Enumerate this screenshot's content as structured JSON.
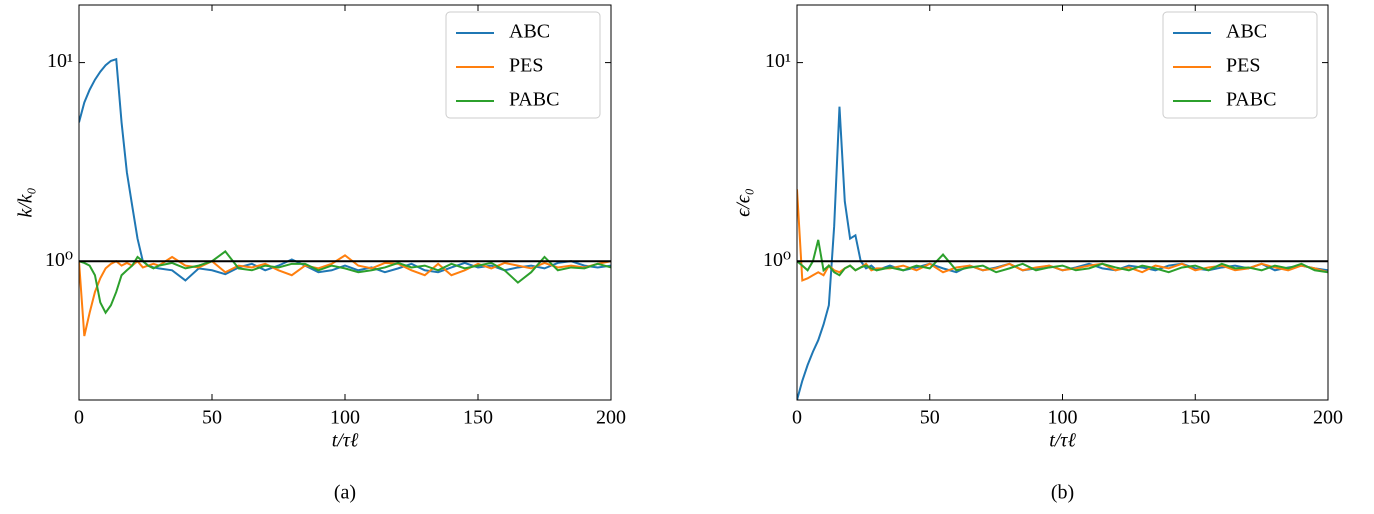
{
  "chart_data": [
    {
      "type": "line",
      "caption": "(a)",
      "x_label": "t/τℓ",
      "y_label": "k/k₀",
      "log_y": true,
      "legend": "upper right",
      "xlim": [
        0,
        200
      ],
      "xticks": [
        0,
        50,
        100,
        150,
        200
      ],
      "ylim": [
        0.2,
        19.5
      ],
      "yticks": [
        {
          "value": 1,
          "label": "10⁰"
        },
        {
          "value": 10,
          "label": "10¹"
        }
      ],
      "reference_line": {
        "value": 1,
        "color": "#000000"
      },
      "x": [
        0,
        2,
        4,
        6,
        8,
        10,
        12,
        14,
        16,
        18,
        20,
        22,
        24,
        26,
        28,
        30,
        35,
        40,
        45,
        50,
        55,
        60,
        65,
        70,
        75,
        80,
        85,
        90,
        95,
        100,
        105,
        110,
        115,
        120,
        125,
        130,
        135,
        140,
        145,
        150,
        155,
        160,
        165,
        170,
        175,
        180,
        185,
        190,
        195,
        200
      ],
      "series": [
        {
          "name": "ABC",
          "color": "#1f77b4",
          "values": [
            5,
            6.3,
            7.3,
            8.2,
            9,
            9.7,
            10.2,
            10.4,
            5,
            2.8,
            1.9,
            1.3,
            1.0,
            0.95,
            0.93,
            0.92,
            0.9,
            0.8,
            0.92,
            0.9,
            0.86,
            0.93,
            0.97,
            0.9,
            0.95,
            1.02,
            0.95,
            0.88,
            0.9,
            0.95,
            0.9,
            0.93,
            0.88,
            0.92,
            0.97,
            0.9,
            0.88,
            0.93,
            0.98,
            0.93,
            0.95,
            0.9,
            0.93,
            0.95,
            0.92,
            0.98,
            1.0,
            0.95,
            0.93,
            0.95
          ]
        },
        {
          "name": "PES",
          "color": "#ff7f0e",
          "values": [
            1.0,
            0.42,
            0.55,
            0.7,
            0.82,
            0.92,
            0.97,
            1.0,
            0.95,
            0.98,
            0.95,
            1.0,
            0.93,
            0.95,
            0.97,
            0.95,
            1.05,
            0.95,
            0.93,
            1.0,
            0.88,
            0.95,
            0.93,
            0.97,
            0.9,
            0.85,
            0.95,
            0.92,
            0.97,
            1.07,
            0.95,
            0.92,
            0.98,
            0.97,
            0.9,
            0.85,
            0.97,
            0.85,
            0.9,
            0.97,
            0.92,
            0.98,
            0.95,
            0.92,
            0.98,
            0.93,
            0.95,
            0.93,
            0.97,
            1.0
          ]
        },
        {
          "name": "PABC",
          "color": "#2ca02c",
          "values": [
            1.0,
            0.98,
            0.95,
            0.85,
            0.62,
            0.55,
            0.6,
            0.7,
            0.85,
            0.9,
            0.95,
            1.05,
            1.0,
            0.95,
            0.92,
            0.95,
            0.98,
            0.92,
            0.95,
            1.0,
            1.12,
            0.92,
            0.9,
            0.95,
            0.93,
            0.97,
            0.97,
            0.9,
            0.95,
            0.92,
            0.88,
            0.9,
            0.93,
            0.98,
            0.93,
            0.95,
            0.9,
            0.97,
            0.92,
            0.95,
            0.98,
            0.9,
            0.78,
            0.88,
            1.05,
            0.9,
            0.93,
            0.92,
            0.97,
            0.93
          ]
        }
      ]
    },
    {
      "type": "line",
      "caption": "(b)",
      "x_label": "t/τℓ",
      "y_label": "ϵ/ϵ₀",
      "log_y": true,
      "legend": "upper right",
      "xlim": [
        0,
        200
      ],
      "xticks": [
        0,
        50,
        100,
        150,
        200
      ],
      "ylim": [
        0.2,
        19.5
      ],
      "yticks": [
        {
          "value": 1,
          "label": "10⁰"
        },
        {
          "value": 10,
          "label": "10¹"
        }
      ],
      "reference_line": {
        "value": 1,
        "color": "#000000"
      },
      "x": [
        0,
        2,
        4,
        6,
        8,
        10,
        12,
        14,
        16,
        18,
        20,
        22,
        24,
        26,
        28,
        30,
        35,
        40,
        45,
        50,
        55,
        60,
        65,
        70,
        75,
        80,
        85,
        90,
        95,
        100,
        105,
        110,
        115,
        120,
        125,
        130,
        135,
        140,
        145,
        150,
        155,
        160,
        165,
        170,
        175,
        180,
        185,
        190,
        195,
        200
      ],
      "series": [
        {
          "name": "ABC",
          "color": "#1f77b4",
          "values": [
            0.2,
            0.25,
            0.3,
            0.35,
            0.4,
            0.48,
            0.6,
            1.5,
            6.0,
            2.0,
            1.3,
            1.35,
            1.0,
            0.92,
            0.95,
            0.9,
            0.95,
            0.9,
            0.93,
            0.97,
            0.92,
            0.88,
            0.95,
            0.9,
            0.93,
            0.97,
            0.9,
            0.92,
            0.95,
            0.9,
            0.93,
            0.97,
            0.92,
            0.9,
            0.95,
            0.93,
            0.9,
            0.95,
            0.97,
            0.92,
            0.9,
            0.93,
            0.95,
            0.92,
            0.97,
            0.9,
            0.93,
            0.95,
            0.92,
            0.9
          ]
        },
        {
          "name": "PES",
          "color": "#ff7f0e",
          "values": [
            2.3,
            0.8,
            0.82,
            0.85,
            0.88,
            0.85,
            0.95,
            0.9,
            0.88,
            0.92,
            0.95,
            0.9,
            0.93,
            0.97,
            0.9,
            0.92,
            0.92,
            0.95,
            0.9,
            0.97,
            0.88,
            0.93,
            0.95,
            0.9,
            0.92,
            0.97,
            0.9,
            0.93,
            0.95,
            0.9,
            0.92,
            0.95,
            0.97,
            0.9,
            0.93,
            0.88,
            0.95,
            0.92,
            0.97,
            0.9,
            0.93,
            0.95,
            0.9,
            0.92,
            0.97,
            0.93,
            0.9,
            0.95,
            0.92,
            0.88
          ]
        },
        {
          "name": "PABC",
          "color": "#2ca02c",
          "values": [
            1.0,
            0.95,
            0.9,
            1.0,
            1.28,
            0.9,
            0.95,
            0.88,
            0.85,
            0.92,
            0.95,
            0.9,
            0.93,
            0.95,
            0.92,
            0.9,
            0.93,
            0.9,
            0.95,
            0.92,
            1.08,
            0.9,
            0.93,
            0.95,
            0.88,
            0.92,
            0.97,
            0.9,
            0.93,
            0.95,
            0.9,
            0.92,
            0.97,
            0.93,
            0.9,
            0.95,
            0.92,
            0.88,
            0.93,
            0.95,
            0.9,
            0.97,
            0.92,
            0.93,
            0.9,
            0.95,
            0.92,
            0.97,
            0.9,
            0.88
          ]
        }
      ]
    }
  ]
}
